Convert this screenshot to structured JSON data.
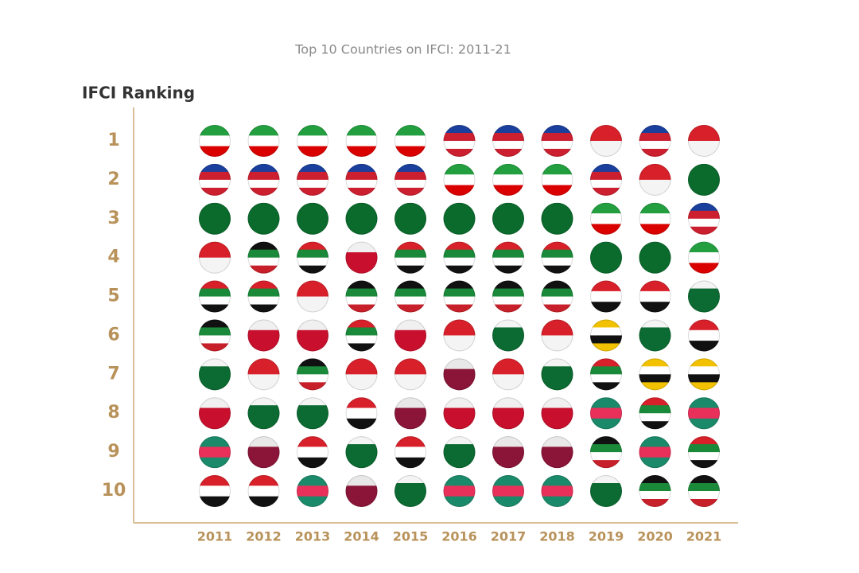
{
  "chart_data": {
    "type": "rank-grid",
    "title": "Top 10 Countries on IFCI: 2011-21",
    "y_label": "IFCI Ranking",
    "categories": [
      "2011",
      "2012",
      "2013",
      "2014",
      "2015",
      "2016",
      "2017",
      "2018",
      "2019",
      "2020",
      "2021"
    ],
    "ylim": [
      1,
      10
    ],
    "yticks": [
      1,
      2,
      3,
      4,
      5,
      6,
      7,
      8,
      9,
      10
    ],
    "series": [
      {
        "colors": [
          "#239f40",
          "#ffffff",
          "#da0000"
        ],
        "values": [
          1,
          1,
          1,
          1,
          1,
          2,
          2,
          2,
          3,
          3,
          4
        ]
      },
      {
        "colors": [
          "#1a3f9c",
          "#cc1f2f",
          "#ffffff",
          "#cc1f2f"
        ],
        "values": [
          2,
          2,
          2,
          2,
          2,
          1,
          1,
          1,
          2,
          1,
          3
        ]
      },
      {
        "colors": [
          "#0a6b2d",
          "#0a6b2d"
        ],
        "values": [
          3,
          3,
          3,
          3,
          3,
          3,
          3,
          3,
          4,
          4,
          2
        ]
      },
      {
        "colors": [
          "#d8202a",
          "#f4f4f4"
        ],
        "values": [
          4,
          7,
          5,
          7,
          7,
          6,
          7,
          6,
          1,
          2,
          1
        ]
      },
      {
        "colors": [
          "#111111",
          "#1a8a3a",
          "#ffffff",
          "#c8202a"
        ],
        "values": [
          6,
          4,
          7,
          5,
          5,
          5,
          5,
          5,
          9,
          10,
          10
        ]
      },
      {
        "colors": [
          "#d8202a",
          "#1a8a3a",
          "#ffffff",
          "#111111"
        ],
        "values": [
          5,
          5,
          4,
          6,
          4,
          4,
          4,
          4,
          7,
          8,
          9
        ]
      },
      {
        "colors": [
          "#e8e8e8",
          "#8a1538",
          "#8a1538"
        ],
        "values": [
          null,
          9,
          null,
          10,
          8,
          7,
          9,
          9,
          null,
          null,
          null
        ]
      },
      {
        "colors": [
          "#f0f0f0",
          "#c8102e",
          "#c8102e"
        ],
        "values": [
          8,
          6,
          6,
          4,
          6,
          8,
          8,
          8,
          null,
          null,
          null
        ]
      },
      {
        "colors": [
          "#f4f4f4",
          "#0b6b32",
          "#0b6b32",
          "#0b6b32"
        ],
        "values": [
          7,
          8,
          8,
          9,
          10,
          9,
          6,
          7,
          10,
          6,
          5
        ]
      },
      {
        "colors": [
          "#d8202a",
          "#ffffff",
          "#111111"
        ],
        "values": [
          10,
          10,
          9,
          8,
          9,
          null,
          null,
          null,
          5,
          5,
          6
        ]
      },
      {
        "colors": [
          "#1a8a6a",
          "#e8305a",
          "#1a8a6a"
        ],
        "values": [
          9,
          null,
          10,
          null,
          null,
          10,
          10,
          10,
          8,
          9,
          8
        ]
      },
      {
        "colors": [
          "#f2c200",
          "#ffffff",
          "#111111",
          "#f2c200"
        ],
        "values": [
          null,
          null,
          null,
          null,
          null,
          null,
          null,
          null,
          6,
          7,
          7
        ]
      }
    ]
  }
}
